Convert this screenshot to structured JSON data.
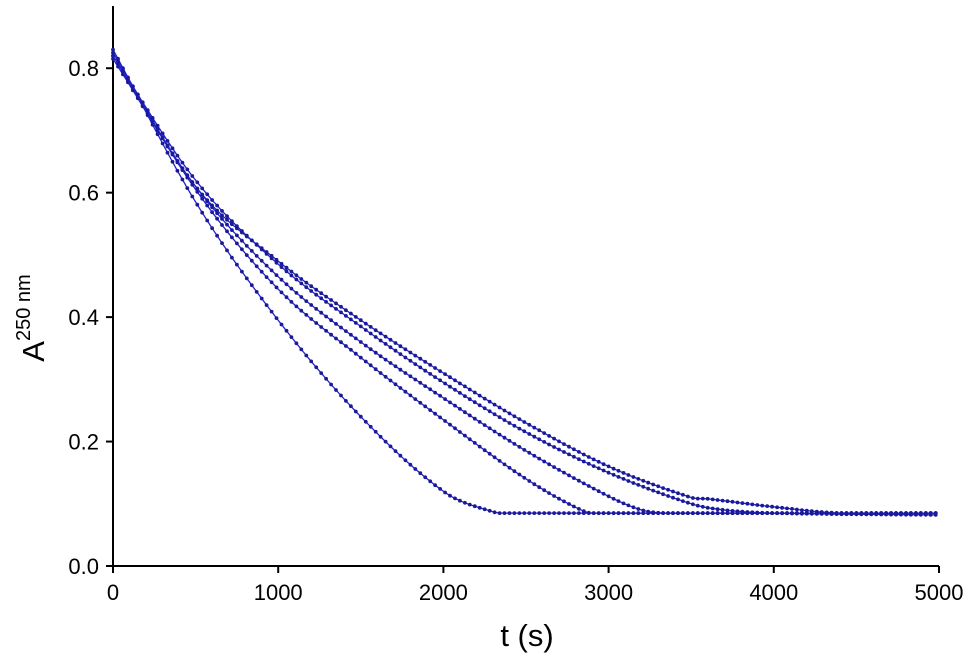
{
  "chart_data": {
    "type": "line",
    "title": "",
    "xlabel": "t (s)",
    "ylabel_main": "A",
    "ylabel_sup": "250 nm",
    "xlim": [
      0,
      5000
    ],
    "ylim": [
      0,
      0.9
    ],
    "xticks": [
      0,
      1000,
      2000,
      3000,
      4000,
      5000
    ],
    "yticks": [
      0.0,
      0.2,
      0.4,
      0.6,
      0.8
    ],
    "xtick_labels": [
      "0",
      "1000",
      "2000",
      "3000",
      "4000",
      "5000"
    ],
    "ytick_labels": [
      "0.0",
      "0.2",
      "0.4",
      "0.6",
      "0.8"
    ],
    "grid": false,
    "legend": false,
    "line_color": "#2222cc",
    "marker_color": "#1a1a99",
    "series": [
      {
        "x": [
          0,
          500,
          1000,
          1500,
          2000,
          2300,
          2400,
          5000
        ],
        "y": [
          0.83,
          0.585,
          0.395,
          0.24,
          0.12,
          0.087,
          0.085,
          0.085
        ]
      },
      {
        "x": [
          0,
          500,
          1000,
          1500,
          2000,
          2500,
          2850,
          2950,
          5000
        ],
        "y": [
          0.82,
          0.605,
          0.445,
          0.335,
          0.235,
          0.14,
          0.088,
          0.085,
          0.085
        ]
      },
      {
        "x": [
          0,
          500,
          1000,
          1500,
          2000,
          2500,
          3000,
          3200,
          3350,
          5000
        ],
        "y": [
          0.815,
          0.61,
          0.465,
          0.36,
          0.27,
          0.185,
          0.112,
          0.09,
          0.085,
          0.085
        ]
      },
      {
        "x": [
          0,
          500,
          1000,
          1500,
          2000,
          2500,
          3000,
          3500,
          3600,
          4000,
          4400,
          5000
        ],
        "y": [
          0.825,
          0.61,
          0.49,
          0.395,
          0.31,
          0.23,
          0.16,
          0.11,
          0.108,
          0.095,
          0.085,
          0.085
        ]
      },
      {
        "x": [
          0,
          500,
          1000,
          1500,
          2000,
          2500,
          3000,
          3500,
          3700,
          4000,
          5000
        ],
        "y": [
          0.82,
          0.62,
          0.485,
          0.385,
          0.295,
          0.215,
          0.15,
          0.1,
          0.09,
          0.085,
          0.082
        ]
      }
    ]
  }
}
